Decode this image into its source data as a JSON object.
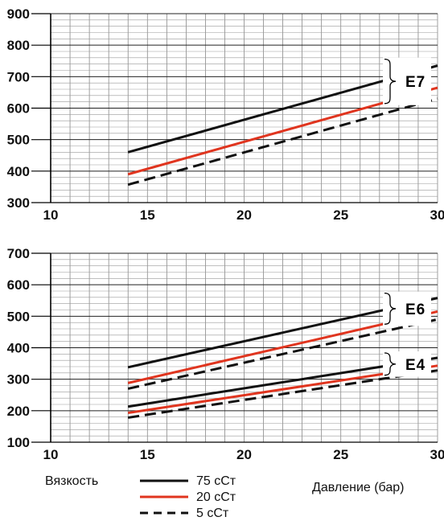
{
  "colors": {
    "black": "#111111",
    "red": "#e0351f"
  },
  "chart_data": [
    {
      "type": "line",
      "xlabel": "",
      "ylabel": "",
      "xlim": [
        10,
        30
      ],
      "ylim": [
        300,
        900
      ],
      "xticks": [
        "10",
        "15",
        "20",
        "25",
        "30"
      ],
      "yticks": [
        "300",
        "400",
        "500",
        "600",
        "700",
        "800",
        "900"
      ],
      "group_label": "E7",
      "series": [
        {
          "key": "75",
          "color": "#111111",
          "dash": "solid",
          "x": [
            14,
            30
          ],
          "y": [
            460,
            735
          ]
        },
        {
          "key": "20",
          "color": "#e0351f",
          "dash": "solid",
          "x": [
            14,
            30
          ],
          "y": [
            390,
            665
          ]
        },
        {
          "key": "5",
          "color": "#111111",
          "dash": "dashed",
          "x": [
            14,
            30
          ],
          "y": [
            357,
            630
          ]
        }
      ]
    },
    {
      "type": "line",
      "xlabel": "Давление (бар)",
      "ylabel": "",
      "xlim": [
        10,
        30
      ],
      "ylim": [
        100,
        700
      ],
      "xticks": [
        "10",
        "15",
        "20",
        "25",
        "30"
      ],
      "yticks": [
        "100",
        "200",
        "300",
        "400",
        "500",
        "600",
        "700"
      ],
      "group_labels": [
        "E6",
        "E4"
      ],
      "series": [
        {
          "key": "75",
          "group": "E6",
          "color": "#111111",
          "dash": "solid",
          "x": [
            14,
            30
          ],
          "y": [
            338,
            558
          ]
        },
        {
          "key": "20",
          "group": "E6",
          "color": "#e0351f",
          "dash": "solid",
          "x": [
            14,
            30
          ],
          "y": [
            288,
            515
          ]
        },
        {
          "key": "5",
          "group": "E6",
          "color": "#111111",
          "dash": "dashed",
          "x": [
            14,
            30
          ],
          "y": [
            270,
            490
          ]
        },
        {
          "key": "75",
          "group": "E4",
          "color": "#111111",
          "dash": "solid",
          "x": [
            14,
            30
          ],
          "y": [
            213,
            368
          ]
        },
        {
          "key": "20",
          "group": "E4",
          "color": "#e0351f",
          "dash": "solid",
          "x": [
            14,
            30
          ],
          "y": [
            193,
            343
          ]
        },
        {
          "key": "5",
          "group": "E4",
          "color": "#111111",
          "dash": "dashed",
          "x": [
            14,
            30
          ],
          "y": [
            178,
            328
          ]
        }
      ]
    }
  ],
  "legend": {
    "title": "Вязкость",
    "entries": [
      {
        "key": "75",
        "label": "75  сСт",
        "color": "#111111",
        "dash": "solid"
      },
      {
        "key": "20",
        "label": "20  сСт",
        "color": "#e0351f",
        "dash": "solid"
      },
      {
        "key": "5",
        "label": "5  сСт",
        "color": "#111111",
        "dash": "dashed"
      }
    ]
  }
}
